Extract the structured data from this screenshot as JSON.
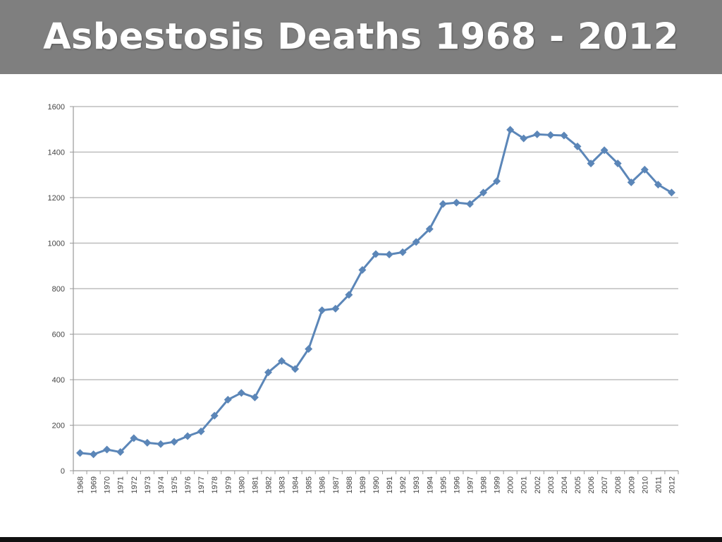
{
  "slide": {
    "title": "Asbestosis Deaths 1968 - 2012"
  },
  "colors": {
    "title_bar": "#7f7f7f",
    "title_text": "#ffffff",
    "series_line": "#5b86b8",
    "gridline": "#bdbdbd",
    "axis": "#9a9a9a",
    "bottom_rule": "#111111"
  },
  "chart_data": {
    "type": "line",
    "title": "",
    "xlabel": "",
    "ylabel": "",
    "ylim": [
      0,
      1600
    ],
    "yticks": [
      0,
      200,
      400,
      600,
      800,
      1000,
      1200,
      1400,
      1600
    ],
    "grid": true,
    "legend": "none",
    "marker": "diamond",
    "categories": [
      "1968",
      "1969",
      "1970",
      "1971",
      "1972",
      "1973",
      "1974",
      "1975",
      "1976",
      "1977",
      "1978",
      "1979",
      "1980",
      "1981",
      "1982",
      "1983",
      "1984",
      "1985",
      "1986",
      "1987",
      "1988",
      "1989",
      "1990",
      "1991",
      "1992",
      "1993",
      "1994",
      "1995",
      "1996",
      "1997",
      "1998",
      "1999",
      "2000",
      "2001",
      "2002",
      "2003",
      "2004",
      "2005",
      "2006",
      "2007",
      "2008",
      "2009",
      "2010",
      "2011",
      "2012"
    ],
    "series": [
      {
        "values": [
          78,
          72,
          93,
          82,
          143,
          123,
          117,
          127,
          152,
          173,
          242,
          312,
          342,
          322,
          432,
          482,
          447,
          535,
          705,
          712,
          773,
          882,
          952,
          950,
          960,
          1005,
          1062,
          1172,
          1178,
          1172,
          1222,
          1272,
          1498,
          1460,
          1478,
          1475,
          1473,
          1425,
          1350,
          1408,
          1350,
          1267,
          1323,
          1257,
          1222
        ]
      }
    ]
  }
}
